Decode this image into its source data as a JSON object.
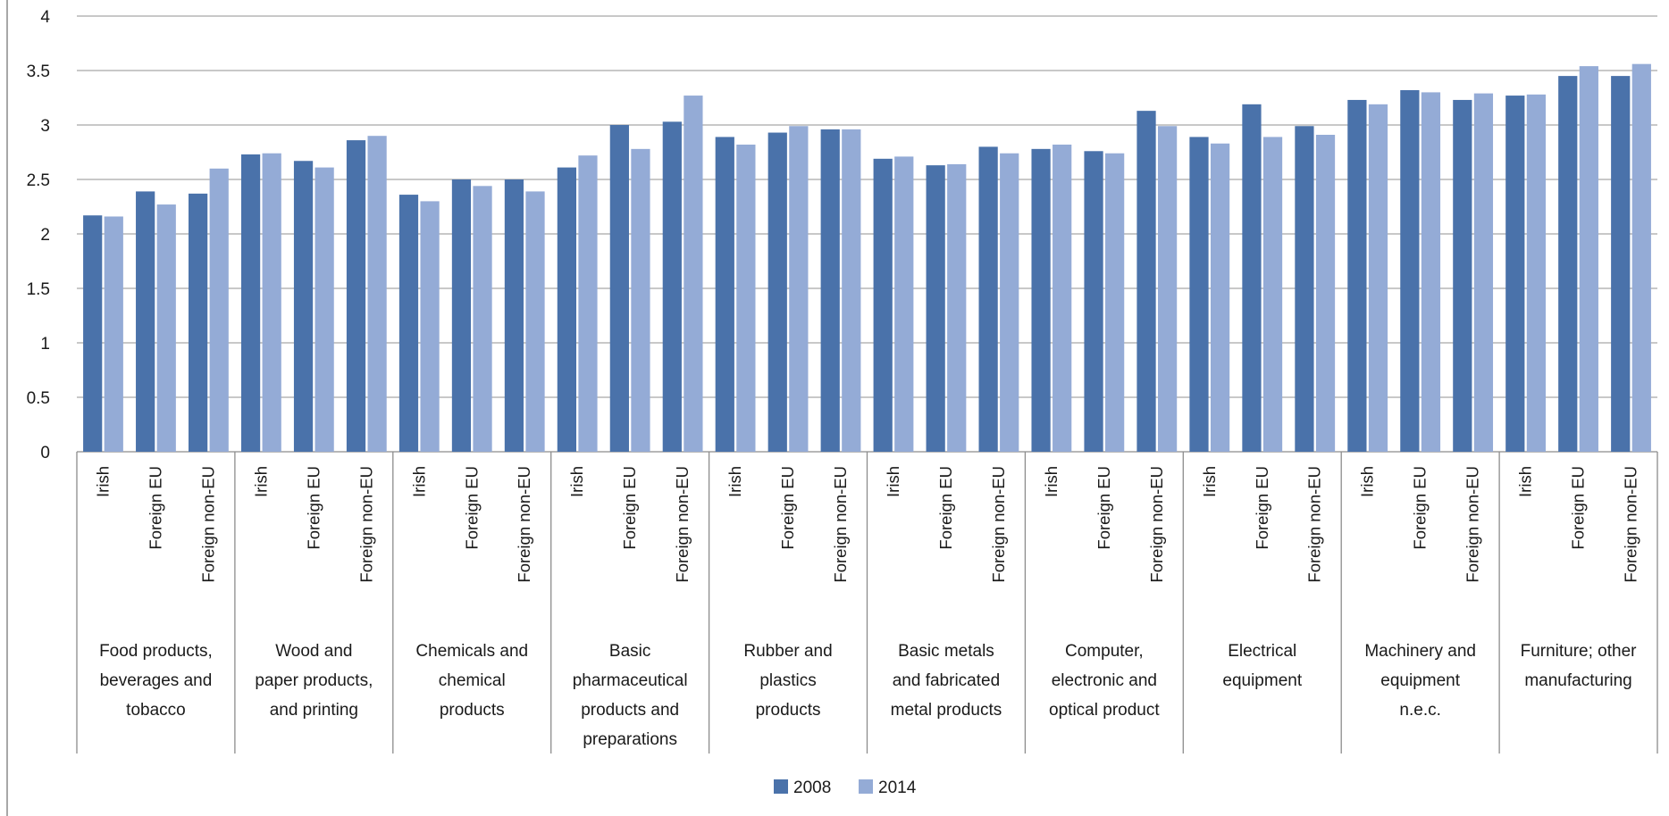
{
  "chart_data": {
    "type": "bar",
    "ylim": [
      0,
      4
    ],
    "yticks": [
      "0",
      "0.5",
      "1",
      "1.5",
      "2",
      "2.5",
      "3",
      "3.5",
      "4"
    ],
    "grid": true,
    "legend_position": "bottom-center",
    "colors": {
      "2008": "#4a72aa",
      "2014": "#94abd6"
    },
    "subcategories": [
      "Irish",
      "Foreign EU",
      "Foreign non-EU"
    ],
    "groups": [
      {
        "label": [
          "Food products,",
          "beverages and",
          "tobacco"
        ]
      },
      {
        "label": [
          "Wood and",
          "paper products,",
          "and printing"
        ]
      },
      {
        "label": [
          "Chemicals and",
          "chemical",
          "products"
        ]
      },
      {
        "label": [
          "Basic",
          "pharmaceutical",
          "products and",
          "preparations"
        ]
      },
      {
        "label": [
          "Rubber and",
          "plastics",
          "products"
        ]
      },
      {
        "label": [
          "Basic metals",
          "and fabricated",
          "metal products"
        ]
      },
      {
        "label": [
          "Computer,",
          "electronic and",
          "optical product"
        ]
      },
      {
        "label": [
          "Electrical",
          "equipment"
        ]
      },
      {
        "label": [
          "Machinery and",
          "equipment",
          "n.e.c."
        ]
      },
      {
        "label": [
          "Furniture; other",
          "manufacturing"
        ]
      }
    ],
    "series": [
      {
        "name": "2008",
        "values": [
          2.17,
          2.39,
          2.37,
          2.73,
          2.67,
          2.86,
          2.36,
          2.5,
          2.5,
          2.61,
          3.0,
          3.03,
          2.89,
          2.93,
          2.96,
          2.69,
          2.63,
          2.8,
          2.78,
          2.76,
          3.13,
          2.89,
          3.19,
          2.99,
          3.23,
          3.32,
          3.23,
          3.27,
          3.45,
          3.45
        ]
      },
      {
        "name": "2014",
        "values": [
          2.16,
          2.27,
          2.6,
          2.74,
          2.61,
          2.9,
          2.3,
          2.44,
          2.39,
          2.72,
          2.78,
          3.27,
          2.82,
          2.99,
          2.96,
          2.71,
          2.64,
          2.74,
          2.82,
          2.74,
          2.99,
          2.83,
          2.89,
          2.91,
          3.19,
          3.3,
          3.29,
          3.28,
          3.54,
          3.56
        ]
      }
    ]
  }
}
